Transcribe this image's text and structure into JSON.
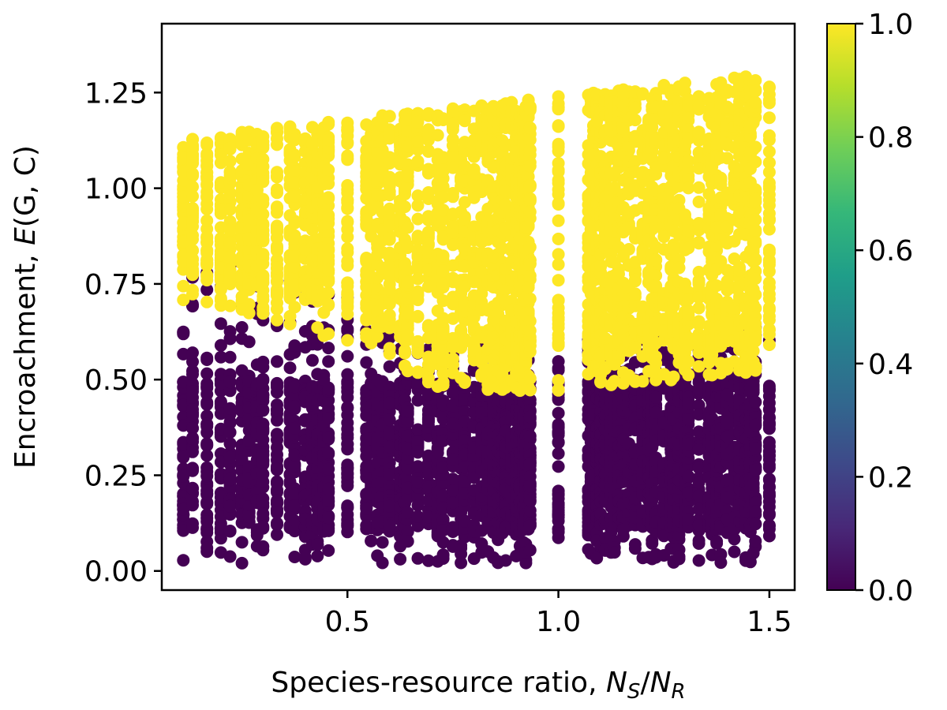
{
  "chart_data": {
    "type": "scatter",
    "title": "",
    "xlabel": "Species-resource ratio, N_S/N_R",
    "xlabel_parts": {
      "prefix": "Species-resource ratio, ",
      "n1": "N",
      "sub1": "S",
      "slash": "/",
      "n2": "N",
      "sub2": "R"
    },
    "ylabel": "Encroachment, E(G,C)",
    "ylabel_parts": {
      "prefix": "Encroachment, ",
      "fn": "E",
      "args": "(G, C)"
    },
    "xlim": [
      0.06,
      1.56
    ],
    "ylim": [
      -0.05,
      1.43
    ],
    "xticks": [
      0.5,
      1.0,
      1.5
    ],
    "xtick_labels": [
      "0.5",
      "1.0",
      "1.5"
    ],
    "yticks": [
      0.0,
      0.25,
      0.5,
      0.75,
      1.0,
      1.25
    ],
    "ytick_labels": [
      "0.00",
      "0.25",
      "0.50",
      "0.75",
      "1.00",
      "1.25"
    ],
    "grid": false,
    "colormap": "viridis",
    "colorbar": {
      "range": [
        0.0,
        1.0
      ],
      "ticks": [
        0.0,
        0.2,
        0.4,
        0.6,
        0.8,
        1.0
      ],
      "tick_labels": [
        "0.0",
        "0.2",
        "0.4",
        "0.6",
        "0.8",
        "1.0"
      ],
      "stops": [
        "#440154",
        "#482878",
        "#3e4989",
        "#31688e",
        "#26828e",
        "#1f9e89",
        "#35b779",
        "#6ece58",
        "#b5de2b",
        "#fde725"
      ]
    },
    "x_columns": [
      0.111,
      0.133,
      0.167,
      0.2,
      0.222,
      0.25,
      0.267,
      0.286,
      0.3,
      0.333,
      0.364,
      0.375,
      0.4,
      0.417,
      0.429,
      0.444,
      0.455,
      0.5,
      0.545,
      0.556,
      0.571,
      0.583,
      0.6,
      0.625,
      0.636,
      0.643,
      0.667,
      0.692,
      0.714,
      0.727,
      0.75,
      0.769,
      0.778,
      0.8,
      0.818,
      0.833,
      0.846,
      0.857,
      0.867,
      0.875,
      0.889,
      0.9,
      0.909,
      0.917,
      0.923,
      0.929,
      0.933,
      1.0,
      1.071,
      1.077,
      1.083,
      1.091,
      1.1,
      1.111,
      1.125,
      1.133,
      1.143,
      1.154,
      1.167,
      1.182,
      1.2,
      1.214,
      1.222,
      1.231,
      1.25,
      1.267,
      1.273,
      1.286,
      1.3,
      1.308,
      1.333,
      1.357,
      1.364,
      1.375,
      1.385,
      1.4,
      1.417,
      1.429,
      1.444,
      1.455,
      1.462,
      1.467,
      1.5
    ],
    "points_per_column": 40,
    "value_colors": {
      "0": "#440154",
      "1": "#fde725"
    },
    "series": [
      {
        "value": 0,
        "y_range": [
          0.02,
          0.93
        ],
        "dense_core": [
          0.1,
          0.5
        ]
      },
      {
        "value": 1,
        "y_range": [
          0.6,
          1.36
        ],
        "dense_core": [
          0.75,
          1.25
        ]
      }
    ],
    "boundary": {
      "x": [
        0.1,
        0.5,
        0.7,
        1.0,
        1.5
      ],
      "y": [
        0.78,
        0.68,
        0.55,
        0.55,
        0.6
      ]
    }
  }
}
